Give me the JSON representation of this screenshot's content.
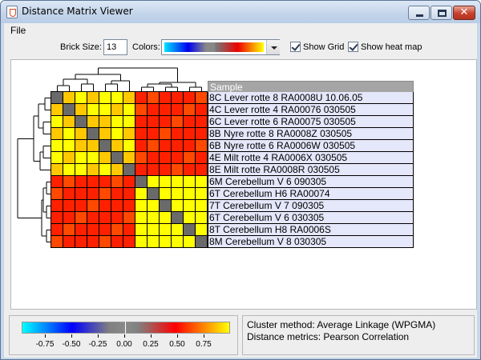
{
  "window": {
    "title": "Distance Matrix Viewer",
    "close_glyph": "✕"
  },
  "menu": {
    "file": "File"
  },
  "toolbar": {
    "brick_size_label": "Brick Size:",
    "brick_size_value": "13",
    "colors_label": "Colors:",
    "show_grid_label": "Show Grid",
    "show_grid_checked": true,
    "show_heatmap_label": "Show heat map",
    "show_heatmap_checked": true
  },
  "colors": {
    "yellow": "#ffff00",
    "red": "#ff2000",
    "orange": "#ffc800",
    "redorange": "#ff4800",
    "diag": "#6a6a6a"
  },
  "sample_table": {
    "header": "Sample",
    "rows": [
      "8C  Lever rotte 8  RA0008U  10.06.05",
      "4C  Lever rotte 4  RA00076  030505",
      "6C Lever rotte 6  RA00075  030505",
      "8B Nyre rotte 8  RA0008Z  030505",
      "6B  Nyre rotte 6  RA0006W  030505",
      "4E Milt rotte 4  RA0006X  030505",
      "8E Milt rotte RA0008R  030505",
      "6M Cerebellum V 6 090305",
      "6T Cerebellum H6  RA00074",
      "7T Cerebellum V 7 090305",
      "6T Cerebellum V 6 030305",
      "8T Cerebellum H8  RA0006S",
      "8M Cerebellum V 8 030305"
    ]
  },
  "legend": {
    "ticks": [
      "-0.75",
      "-0.50",
      "-0.25",
      "0.00",
      "0.25",
      "0.50",
      "0.75"
    ]
  },
  "info": {
    "cluster_method": "Cluster method: Average Linkage (WPGMA)",
    "distance_metrics": "Distance metrics: Pearson Correlation"
  }
}
